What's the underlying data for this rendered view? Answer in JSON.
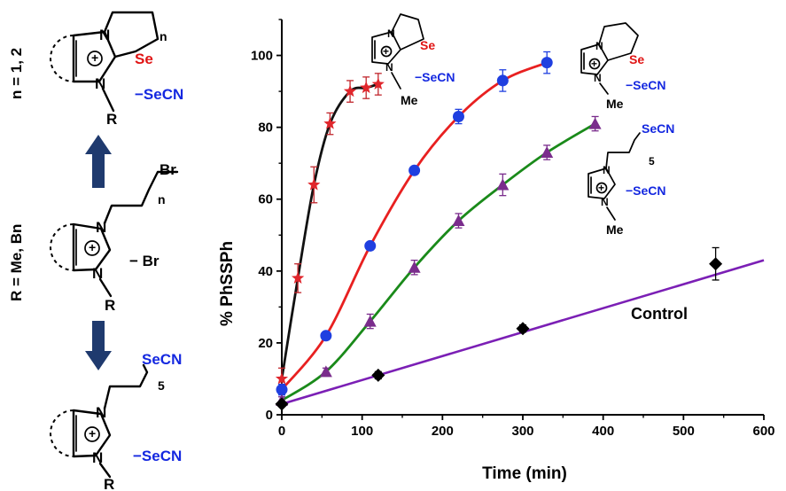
{
  "chart_data": {
    "type": "scatter",
    "title": "",
    "xlabel": "Time (min)",
    "ylabel": "% PhSSPh",
    "xlim": [
      0,
      600
    ],
    "ylim": [
      0,
      110
    ],
    "xticks": [
      "0",
      "100",
      "200",
      "300",
      "400",
      "500",
      "600"
    ],
    "yticks": [
      "0",
      "20",
      "40",
      "60",
      "80",
      "100"
    ],
    "grid": false,
    "legend": "none",
    "series": [
      {
        "name": "",
        "marker": "star",
        "color": "#e0262c",
        "line_color": "#111111",
        "x": [
          0,
          20,
          40,
          60,
          85,
          105,
          120
        ],
        "y": [
          10,
          38,
          64,
          81,
          90,
          91,
          92
        ],
        "err": [
          3,
          4,
          5,
          3,
          3,
          3,
          3
        ]
      },
      {
        "name": "",
        "marker": "circle",
        "color": "#1f3fe0",
        "line_color": "#e82020",
        "x": [
          0,
          55,
          110,
          165,
          220,
          275,
          330
        ],
        "y": [
          7,
          22,
          47,
          68,
          83,
          93,
          98
        ],
        "err": [
          1.5,
          1,
          1,
          1,
          2,
          3,
          3
        ]
      },
      {
        "name": "",
        "marker": "triangle",
        "color": "#7a2c8c",
        "line_color": "#1a8a1a",
        "x": [
          0,
          55,
          110,
          165,
          220,
          275,
          330,
          390
        ],
        "y": [
          4,
          12,
          26,
          41,
          54,
          64,
          73,
          81
        ],
        "err": [
          1,
          1,
          2,
          2,
          2,
          3,
          2,
          2
        ]
      },
      {
        "name": "Control",
        "marker": "diamond",
        "color": "#000000",
        "line_color": "#7b1fb5",
        "x": [
          0,
          120,
          300,
          540
        ],
        "y": [
          3,
          11,
          24,
          42
        ],
        "err": [
          0.5,
          1,
          1,
          4.5
        ],
        "fit": [
          [
            0,
            3
          ],
          [
            600,
            43
          ]
        ]
      }
    ]
  },
  "labels": {
    "n_def": "n = 1, 2",
    "r_def": "R = Me, Bn",
    "control": "Control",
    "N": "N",
    "R": "R",
    "Se": "Se",
    "Br": "Br",
    "minus_br": "− Br",
    "secn": "−SeCN",
    "secn_top": "SeCN",
    "me": "Me",
    "n": "n",
    "five": "5",
    "plus": "+"
  }
}
